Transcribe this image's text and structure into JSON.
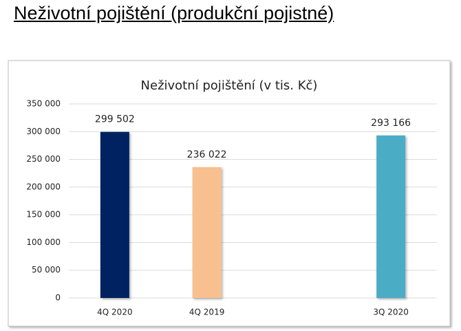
{
  "heading": "Neživotní pojištění (produkční pojistné)",
  "chart_data": {
    "type": "bar",
    "title": "Neživotní pojištění (v tis. Kč)",
    "categories": [
      "4Q 2020",
      "4Q 2019",
      null,
      "3Q 2020"
    ],
    "values": [
      299502,
      236022,
      null,
      293166
    ],
    "value_labels": [
      "299 502",
      "236 022",
      null,
      "293 166"
    ],
    "colors": [
      "#002060",
      "#f8bf8f",
      null,
      "#4bacc6"
    ],
    "ylim": [
      0,
      350000
    ],
    "yticks": [
      0,
      {
        "value": 50000,
        "label": "50 000"
      },
      {
        "value": 100000,
        "label": "100 000"
      },
      {
        "value": 150000,
        "label": "150 000"
      },
      {
        "value": 200000,
        "label": "200 000"
      },
      {
        "value": 250000,
        "label": "250 000"
      },
      {
        "value": 300000,
        "label": "300 000"
      },
      {
        "value": 350000,
        "label": "350 000"
      }
    ],
    "grid": true
  }
}
